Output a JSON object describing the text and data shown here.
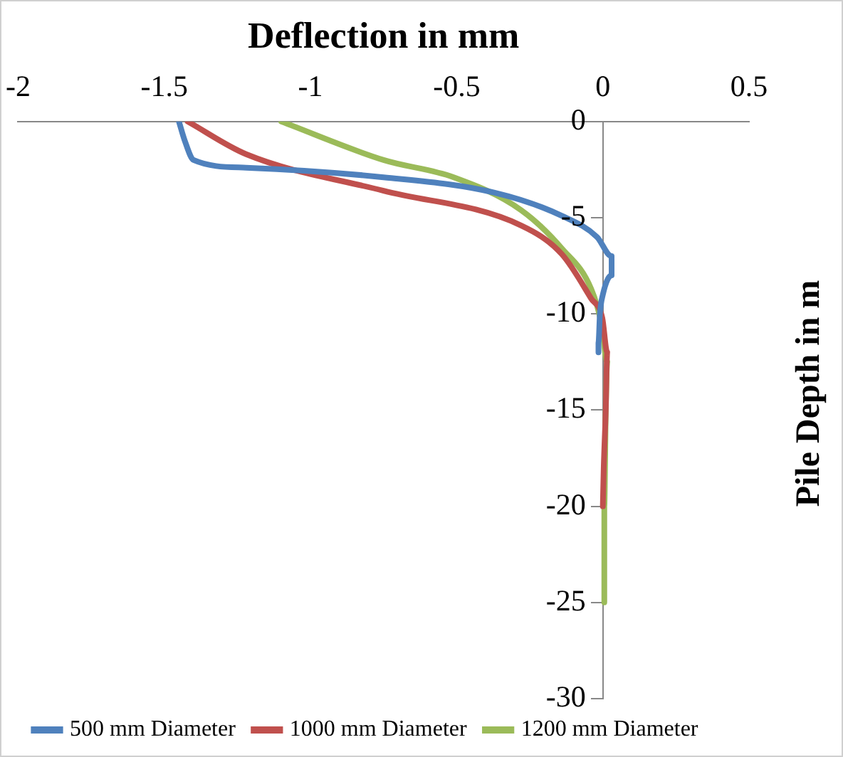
{
  "chart_data": {
    "type": "line",
    "xlabel": "Deflection in mm",
    "ylabel": "Pile Depth in m",
    "xlim": [
      -2,
      0.5
    ],
    "xticks": [
      -2,
      -1.5,
      -1,
      -0.5,
      0,
      0.5
    ],
    "ylim": [
      -30,
      0
    ],
    "yticks": [
      0,
      -5,
      -10,
      -15,
      -20,
      -25,
      -30
    ],
    "grid": false,
    "legend": "bottom",
    "marker": "none",
    "line_style": "solid",
    "series": [
      {
        "name": "500 mm Diameter",
        "color": "#4f81bd",
        "x": [
          -1.45,
          -1.43,
          -1.4,
          -1.22,
          -0.75,
          -0.37,
          -0.14,
          -0.02,
          0.03,
          0.03,
          0,
          -0.01,
          -0.015,
          -0.015
        ],
        "values": [
          0,
          -1,
          -2,
          -2.4,
          -2.9,
          -3.7,
          -4.9,
          -6,
          -7,
          -8,
          -9,
          -10,
          -11.5,
          -12
        ]
      },
      {
        "name": "1000 mm Diameter",
        "color": "#c0504d",
        "x": [
          -1.42,
          -1.22,
          -0.75,
          -0.28,
          -0.14,
          -0.04,
          -0.002,
          0.015,
          0.01,
          0.003,
          0
        ],
        "values": [
          0,
          -1.7,
          -3.6,
          -5.4,
          -6.9,
          -9.2,
          -10.2,
          -12,
          -15,
          -18,
          -20
        ]
      },
      {
        "name": "1200 mm Diameter",
        "color": "#9bbb59",
        "x": [
          -1.1,
          -0.75,
          -0.51,
          -0.28,
          -0.14,
          -0.04,
          -0.005,
          0.015,
          0.01,
          0.005,
          0.005
        ],
        "values": [
          0,
          -2,
          -2.9,
          -4.6,
          -6.6,
          -8.7,
          -10.5,
          -12.5,
          -15,
          -20,
          -25
        ]
      }
    ]
  }
}
